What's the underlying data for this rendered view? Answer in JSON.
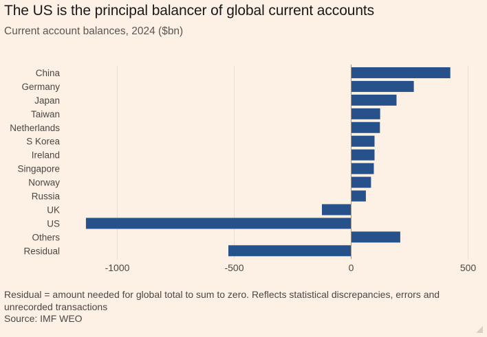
{
  "title": "The US is the principal balancer of global current accounts",
  "subtitle": "Current account balances, 2024 ($bn)",
  "footnote": "Residual = amount needed for global total to sum to zero. Reflects statistical discrepancies, errors and unrecorded transactions",
  "source": "Source: IMF WEO",
  "colors": {
    "bar": "#26518a",
    "background": "#fdf1e6",
    "grid": "#e9ddd2",
    "zero_line": "#9a948e"
  },
  "chart_data": {
    "type": "bar",
    "orientation": "horizontal",
    "title": "The US is the principal balancer of global current accounts",
    "subtitle": "Current account balances, 2024 ($bn)",
    "xlabel": "",
    "ylabel": "",
    "xlim": [
      -1150,
      520
    ],
    "xticks": [
      -1000,
      -500,
      0,
      500
    ],
    "xtick_labels": [
      "-1000",
      "-500",
      "0",
      "500"
    ],
    "grid": true,
    "categories": [
      "China",
      "Germany",
      "Japan",
      "Taiwan",
      "Netherlands",
      "S Korea",
      "Ireland",
      "Singapore",
      "Norway",
      "Russia",
      "UK",
      "US",
      "Others",
      "Residual"
    ],
    "values": [
      424,
      268,
      194,
      124,
      123,
      100,
      100,
      97,
      85,
      63,
      -125,
      -1134,
      210,
      -525
    ]
  }
}
